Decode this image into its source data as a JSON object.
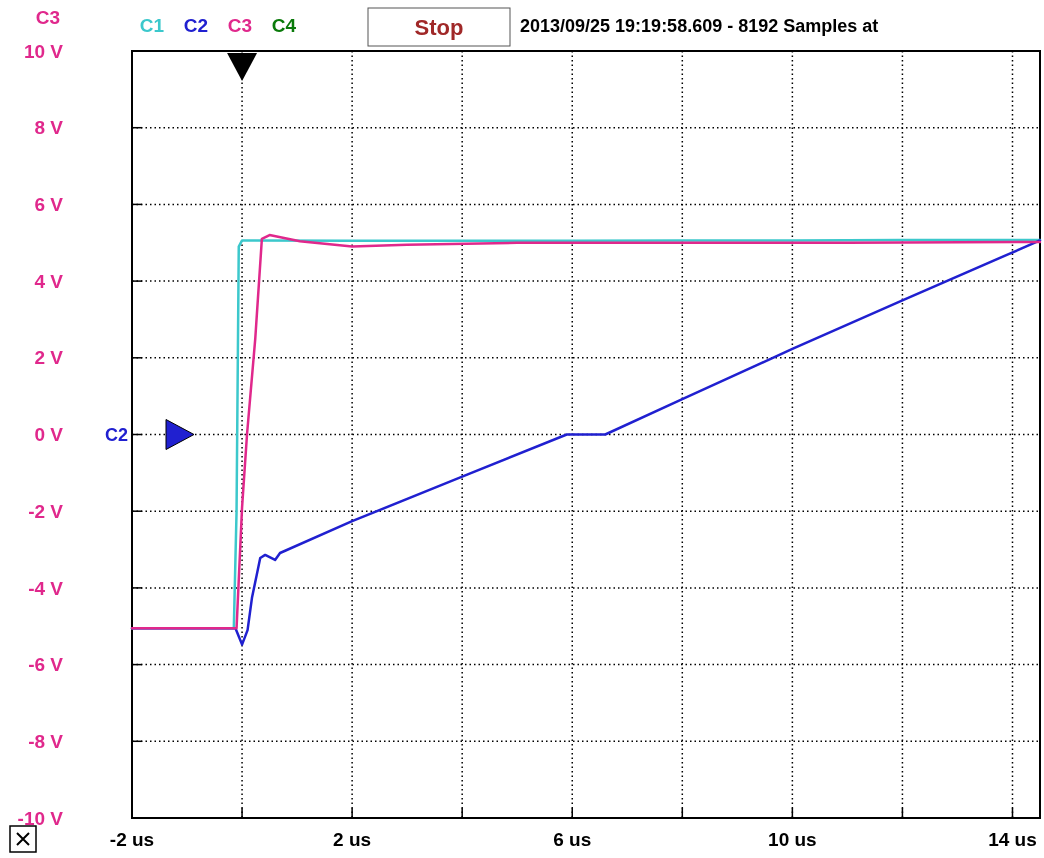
{
  "chart_data": {
    "type": "line",
    "ylabel": "C3",
    "xlim": [
      -2,
      14.5
    ],
    "ylim": [
      -10,
      10
    ],
    "xticks": [
      {
        "value": -2,
        "label": "-2 us"
      },
      {
        "value": 0,
        "label": null
      },
      {
        "value": 2,
        "label": "2 us"
      },
      {
        "value": 4,
        "label": null
      },
      {
        "value": 6,
        "label": "6 us"
      },
      {
        "value": 8,
        "label": null
      },
      {
        "value": 10,
        "label": "10 us"
      },
      {
        "value": 12,
        "label": null
      },
      {
        "value": 14,
        "label": "14 us"
      }
    ],
    "yticks": [
      {
        "value": -10,
        "label": "-10 V"
      },
      {
        "value": -8,
        "label": "-8 V"
      },
      {
        "value": -6,
        "label": "-6 V"
      },
      {
        "value": -4,
        "label": "-4 V"
      },
      {
        "value": -2,
        "label": "-2 V"
      },
      {
        "value": 0,
        "label": "0 V"
      },
      {
        "value": 2,
        "label": "2 V"
      },
      {
        "value": 4,
        "label": "4 V"
      },
      {
        "value": 6,
        "label": "6 V"
      },
      {
        "value": 8,
        "label": "8 V"
      },
      {
        "value": 10,
        "label": "10 V"
      }
    ],
    "grid": true,
    "legend": "top left",
    "marker": "none",
    "line_style": "solid",
    "series": [
      {
        "name": "C1",
        "color": "#3cc8cc",
        "x": [
          -2,
          -0.15,
          -0.1,
          -0.06,
          0,
          2,
          4,
          6,
          8,
          10,
          12,
          14.5
        ],
        "values": [
          -5.05,
          -5.05,
          -2,
          4.9,
          5.06,
          5.05,
          5.05,
          5.05,
          5.06,
          5.06,
          5.07,
          5.07
        ]
      },
      {
        "name": "C2",
        "color": "#2020d0",
        "x": [
          -2,
          -0.12,
          -0.05,
          0,
          0.1,
          0.18,
          0.33,
          0.42,
          0.6,
          0.69,
          2,
          4,
          5.9,
          6.6,
          8,
          10,
          12,
          14.5
        ],
        "values": [
          -5.05,
          -5.05,
          -5.3,
          -5.48,
          -5.1,
          -4.26,
          -3.22,
          -3.14,
          -3.27,
          -3.09,
          -2.26,
          -1.1,
          0,
          0,
          0.92,
          2.23,
          3.5,
          5.06
        ]
      },
      {
        "name": "C3",
        "color": "#e0288c",
        "x": [
          -2,
          -0.1,
          0,
          0.09,
          0.24,
          0.36,
          0.5,
          1.05,
          2,
          3,
          5,
          8,
          11,
          14.5
        ],
        "values": [
          -5.05,
          -5.05,
          -1.9,
          0,
          2.5,
          5.1,
          5.2,
          5.04,
          4.9,
          4.95,
          5,
          5,
          5,
          5.02
        ]
      }
    ],
    "annotations": [
      "C4",
      "Stop",
      "C2",
      "2013/09/25 19:19:58.609 - 8192 Samples at"
    ]
  }
}
